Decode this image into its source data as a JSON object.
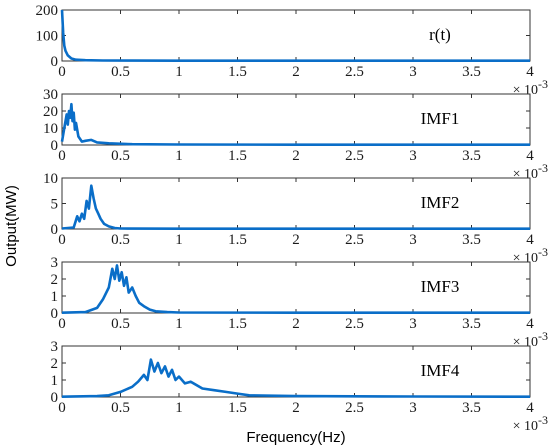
{
  "chart_data": {
    "type": "line",
    "xlabel": "Frequency(Hz)",
    "ylabel": "Output(MW)",
    "x_exponent_label": "× 10",
    "x_exponent_power": "-3",
    "xlim": [
      0,
      4
    ],
    "xticks": [
      "0",
      "0.5",
      "1",
      "1.5",
      "2",
      "2.5",
      "3",
      "3.5",
      "4"
    ],
    "line_color": "#0a6ec8",
    "panels": [
      {
        "label": "r(t)",
        "ylim": [
          0,
          200
        ],
        "yticks": [
          0,
          100,
          200
        ],
        "x": [
          0,
          0.01,
          0.02,
          0.03,
          0.05,
          0.08,
          0.12,
          0.2,
          0.35,
          0.6,
          1.0,
          2.0,
          3.0,
          4.0
        ],
        "y": [
          200,
          110,
          60,
          40,
          22,
          10,
          5,
          3,
          2,
          1.5,
          1,
          1,
          1,
          1
        ]
      },
      {
        "label": "IMF1",
        "ylim": [
          0,
          30
        ],
        "yticks": [
          0,
          10,
          20,
          30
        ],
        "x": [
          0,
          0.02,
          0.04,
          0.05,
          0.06,
          0.07,
          0.08,
          0.09,
          0.1,
          0.11,
          0.12,
          0.14,
          0.17,
          0.2,
          0.25,
          0.3,
          0.4,
          0.6,
          1.0,
          2.0,
          4.0
        ],
        "y": [
          2,
          10,
          18,
          12,
          20,
          16,
          24,
          14,
          19,
          9,
          13,
          5,
          2,
          2.5,
          3,
          1.5,
          1,
          0.5,
          0.3,
          0.2,
          0.2
        ]
      },
      {
        "label": "IMF2",
        "ylim": [
          0,
          10
        ],
        "yticks": [
          0,
          5,
          10
        ],
        "x": [
          0,
          0.1,
          0.13,
          0.15,
          0.17,
          0.19,
          0.21,
          0.23,
          0.25,
          0.27,
          0.29,
          0.31,
          0.33,
          0.36,
          0.4,
          0.45,
          0.5,
          1.0,
          2.0,
          4.0
        ],
        "y": [
          0.1,
          0.3,
          2.5,
          1.5,
          3.0,
          2.0,
          5.5,
          4.0,
          8.5,
          6.0,
          4.0,
          3.0,
          2.0,
          1.0,
          0.5,
          0.2,
          0.1,
          0.05,
          0.05,
          0.05
        ]
      },
      {
        "label": "IMF3",
        "ylim": [
          0,
          3
        ],
        "yticks": [
          0,
          1,
          2,
          3
        ],
        "x": [
          0,
          0.2,
          0.3,
          0.35,
          0.4,
          0.43,
          0.45,
          0.47,
          0.49,
          0.51,
          0.53,
          0.55,
          0.57,
          0.6,
          0.63,
          0.66,
          0.7,
          0.75,
          0.8,
          0.9,
          1.0,
          2.0,
          4.0
        ],
        "y": [
          0.02,
          0.05,
          0.3,
          0.8,
          1.5,
          2.6,
          2.0,
          2.8,
          1.9,
          2.4,
          1.6,
          2.1,
          1.2,
          1.5,
          1.0,
          0.6,
          0.4,
          0.2,
          0.1,
          0.05,
          0.03,
          0.02,
          0.02
        ]
      },
      {
        "label": "IMF4",
        "ylim": [
          0,
          3
        ],
        "yticks": [
          0,
          1,
          2,
          3
        ],
        "x": [
          0,
          0.3,
          0.4,
          0.5,
          0.6,
          0.65,
          0.7,
          0.73,
          0.76,
          0.79,
          0.82,
          0.85,
          0.88,
          0.91,
          0.94,
          0.97,
          1.0,
          1.05,
          1.1,
          1.2,
          1.3,
          1.4,
          1.5,
          1.6,
          2.0,
          3.0,
          4.0
        ],
        "y": [
          0.02,
          0.05,
          0.1,
          0.3,
          0.6,
          0.9,
          1.3,
          1.0,
          2.2,
          1.5,
          2.0,
          1.4,
          1.8,
          1.2,
          1.6,
          1.0,
          1.2,
          0.8,
          0.9,
          0.5,
          0.4,
          0.3,
          0.2,
          0.1,
          0.05,
          0.03,
          0.02
        ]
      }
    ]
  }
}
